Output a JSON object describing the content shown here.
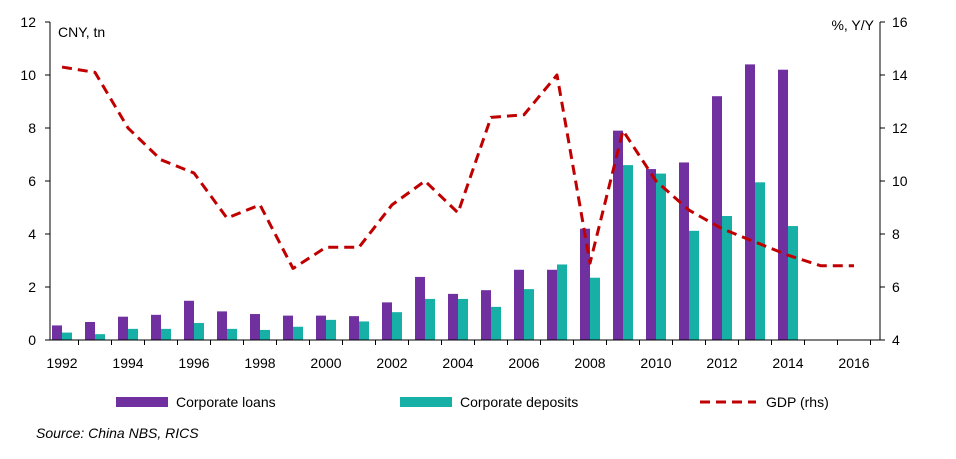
{
  "chart_data": {
    "type": "bar",
    "left_axis_label": "CNY, tn",
    "right_axis_label": "%, Y/Y",
    "x_tick_labels": [
      "1992",
      "1994",
      "1996",
      "1998",
      "2000",
      "2002",
      "2004",
      "2006",
      "2008",
      "2010",
      "2012",
      "2014",
      "2016"
    ],
    "y_left_ticks": [
      "0",
      "2",
      "4",
      "6",
      "8",
      "10",
      "12"
    ],
    "y_right_ticks": [
      "4",
      "6",
      "8",
      "10",
      "12",
      "14",
      "16"
    ],
    "ylim_left": [
      0,
      12
    ],
    "ylim_right": [
      4,
      16
    ],
    "xlim": [
      1992,
      2016
    ],
    "bar_years": [
      1992,
      1993,
      1994,
      1995,
      1996,
      1997,
      1998,
      1999,
      2000,
      2001,
      2002,
      2003,
      2004,
      2005,
      2006,
      2007,
      2008,
      2009,
      2010,
      2011,
      2012,
      2013,
      2014
    ],
    "series": [
      {
        "name": "Corporate loans",
        "kind": "bar",
        "axis": "left",
        "color": "#7030a0",
        "values": [
          0.55,
          0.68,
          0.88,
          0.95,
          1.48,
          1.08,
          0.98,
          0.92,
          0.92,
          0.9,
          1.42,
          2.38,
          1.74,
          1.88,
          2.65,
          2.65,
          4.2,
          7.9,
          6.45,
          6.7,
          9.2,
          10.4,
          10.2
        ]
      },
      {
        "name": "Corporate deposits",
        "kind": "bar",
        "axis": "left",
        "color": "#17b0a6",
        "values": [
          0.28,
          0.22,
          0.42,
          0.42,
          0.64,
          0.42,
          0.38,
          0.5,
          0.76,
          0.7,
          1.05,
          1.55,
          1.55,
          1.25,
          1.92,
          2.85,
          2.35,
          6.6,
          6.28,
          4.12,
          4.68,
          5.95,
          4.3
        ]
      },
      {
        "name": "GDP (rhs)",
        "kind": "line",
        "axis": "right",
        "color": "#c00000",
        "x": [
          1992,
          1993,
          1994,
          1995,
          1996,
          1997,
          1998,
          1999,
          2000,
          2001,
          2002,
          2003,
          2004,
          2005,
          2006,
          2007,
          2008,
          2009,
          2010,
          2011,
          2012,
          2013,
          2014,
          2015,
          2016
        ],
        "values": [
          14.3,
          14.1,
          12.0,
          10.8,
          10.3,
          8.6,
          9.1,
          6.7,
          7.5,
          7.5,
          9.1,
          10.0,
          8.8,
          12.4,
          12.5,
          14.0,
          6.9,
          11.9,
          10.0,
          8.9,
          8.2,
          7.7,
          7.2,
          6.8,
          6.8
        ]
      }
    ],
    "legend_position": "bottom",
    "grid": false
  },
  "source": "Source: China NBS, RICS"
}
